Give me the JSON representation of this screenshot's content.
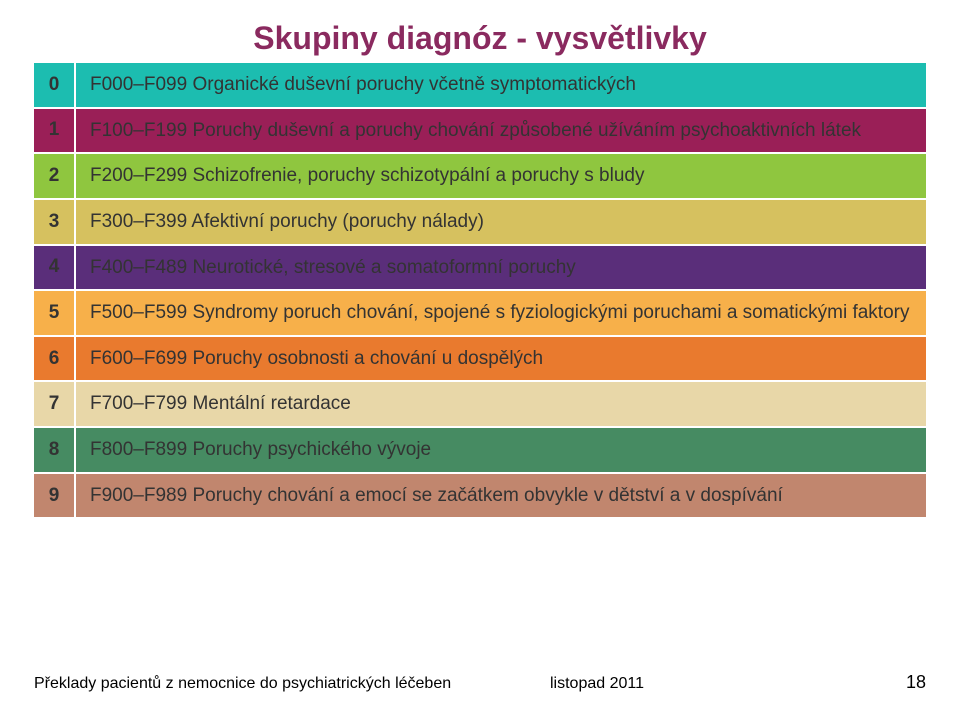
{
  "title": "Skupiny diagnóz - vysvětlivky",
  "title_color": "#8a2a5f",
  "rows": [
    {
      "num": "0",
      "text": "F000–F099 Organické duševní poruchy včetně symptomatických",
      "bg": "#1cbdb0",
      "fg": "#333333"
    },
    {
      "num": "1",
      "text": "F100–F199 Poruchy duševní a poruchy chování způsobené užíváním psychoaktivních látek",
      "bg": "#9a1f57",
      "fg": "#333333"
    },
    {
      "num": "2",
      "text": "F200–F299 Schizofrenie, poruchy schizotypální a poruchy s bludy",
      "bg": "#8fc63f",
      "fg": "#333333"
    },
    {
      "num": "3",
      "text": "F300–F399 Afektivní poruchy (poruchy nálady)",
      "bg": "#d6c15f",
      "fg": "#333333"
    },
    {
      "num": "4",
      "text": "F400–F489 Neurotické, stresové a somatoformní poruchy",
      "bg": "#5a2e7a",
      "fg": "#333333"
    },
    {
      "num": "5",
      "text": "F500–F599 Syndromy poruch chování, spojené s fyziologickými poruchami a somatickými faktory",
      "bg": "#f7b04a",
      "fg": "#333333"
    },
    {
      "num": "6",
      "text": "F600–F699 Poruchy osobnosti a chování u dospělých",
      "bg": "#e97a2e",
      "fg": "#333333"
    },
    {
      "num": "7",
      "text": "F700–F799 Mentální retardace",
      "bg": "#e8d7a8",
      "fg": "#333333"
    },
    {
      "num": "8",
      "text": "F800–F899 Poruchy psychického vývoje",
      "bg": "#468b62",
      "fg": "#333333"
    },
    {
      "num": "9",
      "text": "F900–F989 Poruchy chování a emocí se začátkem obvykle v dětství a v dospívání",
      "bg": "#c1866e",
      "fg": "#333333"
    }
  ],
  "footer": {
    "left": "Překlady pacientů z nemocnice do psychiatrických léčeben",
    "date": "listopad 2011",
    "page": "18"
  }
}
